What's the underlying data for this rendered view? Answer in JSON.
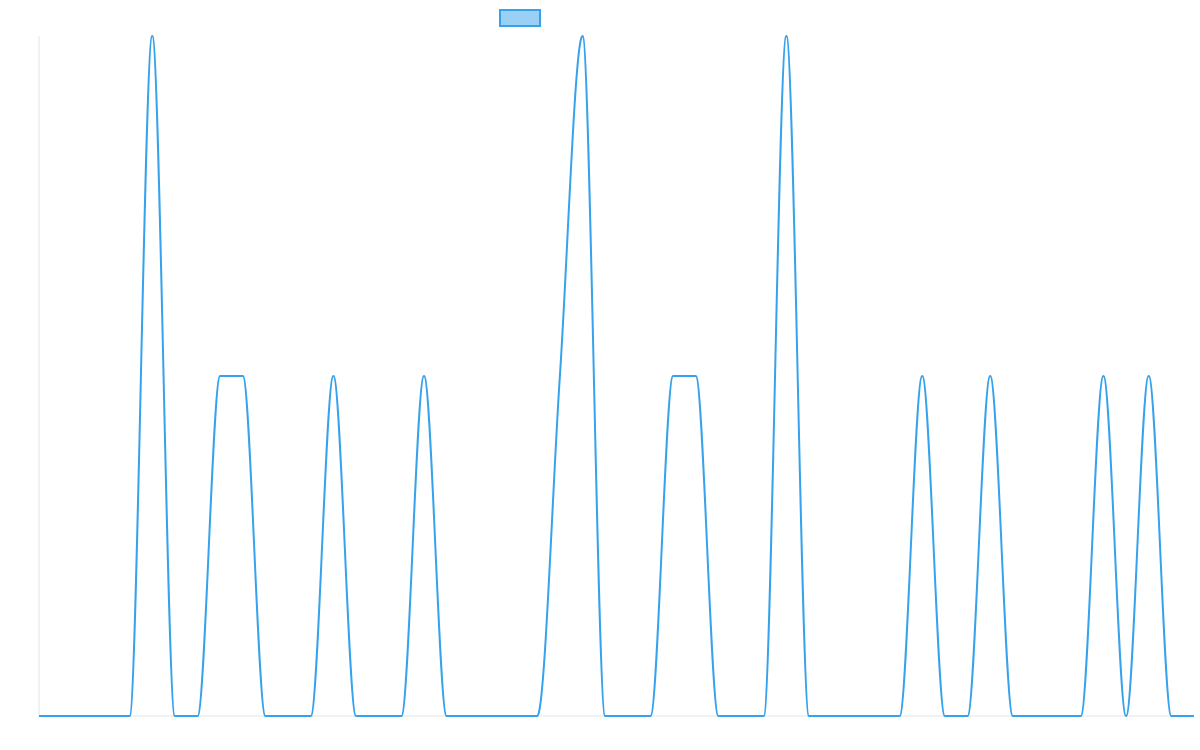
{
  "chart_data": {
    "type": "line",
    "categories": [
      null,
      null,
      null,
      null,
      null,
      null,
      null,
      null,
      null,
      null,
      null,
      null,
      null,
      null,
      null,
      null,
      null,
      null,
      null,
      null,
      null,
      null,
      null,
      null,
      null,
      null,
      null,
      null,
      null,
      null,
      null,
      null,
      null,
      null,
      null,
      null,
      null,
      null,
      null,
      null,
      null,
      null,
      null,
      null,
      null,
      null,
      null,
      null,
      null,
      null,
      null,
      null
    ],
    "series": [
      {
        "color": "#36a2eb",
        "fill": "#9ad0f5",
        "values": [
          0,
          0,
          0,
          0,
          0,
          2,
          0,
          0,
          1,
          1,
          0,
          0,
          0,
          1,
          0,
          0,
          0,
          1,
          0,
          0,
          0,
          0,
          0,
          1,
          2,
          0,
          0,
          0,
          1,
          1,
          0,
          0,
          0,
          2,
          0,
          0,
          0,
          0,
          0,
          1,
          0,
          0,
          1,
          0,
          0,
          0,
          0,
          1,
          0,
          1,
          0,
          0
        ]
      }
    ],
    "ylim": [
      0,
      2
    ],
    "legend": "top"
  }
}
